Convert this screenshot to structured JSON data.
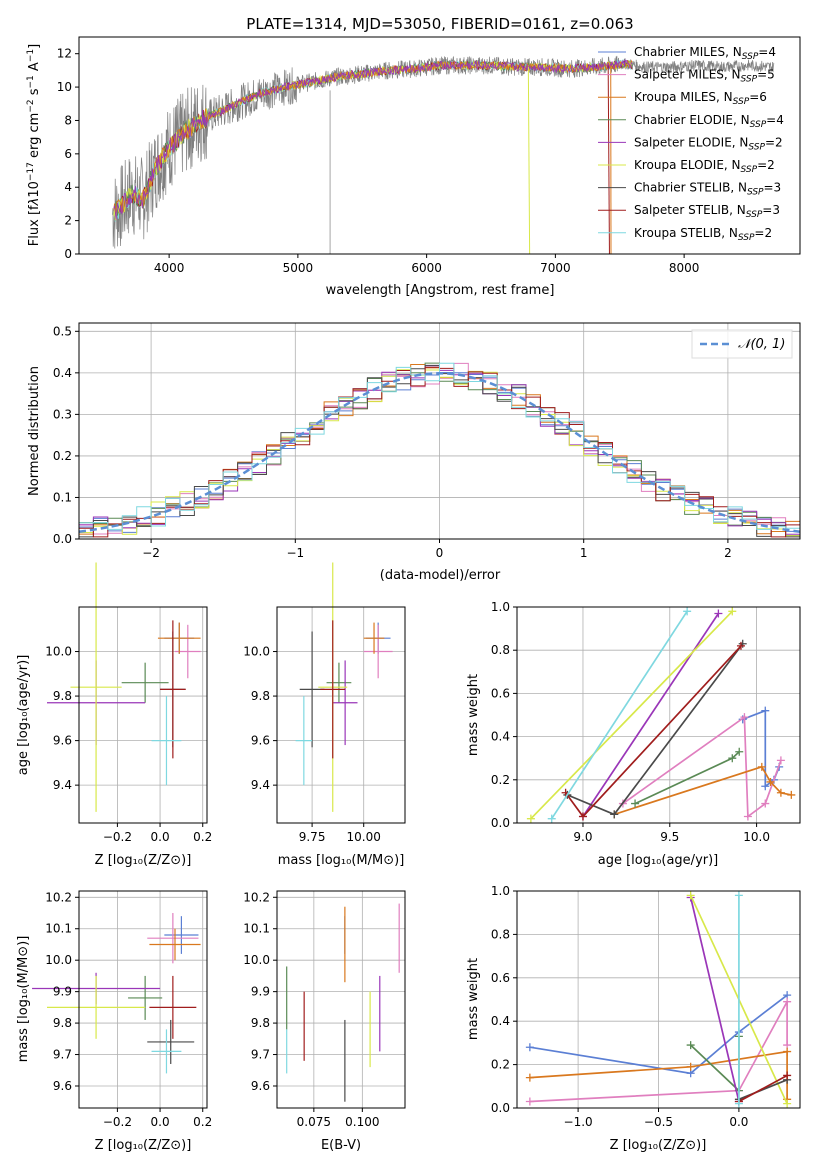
{
  "colors": {
    "chabrier_miles": "#5b7fd4",
    "salpeter_miles": "#e07fbf",
    "kroupa_miles": "#d9781e",
    "chabrier_elodie": "#5a8a55",
    "salpeter_elodie": "#9a36b8",
    "kroupa_elodie": "#d8e84a",
    "chabrier_stelib": "#4a4a4a",
    "salpeter_stelib": "#a01d1d",
    "kroupa_stelib": "#7fd8e0",
    "data_grey": "#808080",
    "normal_curve": "#5b8fd4"
  },
  "chart_data": [
    {
      "id": "spectrum",
      "type": "line",
      "title": "PLATE=1314, MJD=53050, FIBERID=0161, z=0.063",
      "xlabel": "wavelength [Angstrom, rest frame]",
      "ylabel": "Flux [fλ10⁻¹⁷ erg cm⁻² s⁻¹ A⁻¹]",
      "xlim": [
        3300,
        8900
      ],
      "ylim": [
        0,
        13
      ],
      "xticks": [
        "4000",
        "5000",
        "6000",
        "7000",
        "8000"
      ],
      "yticks": [
        "0",
        "2",
        "4",
        "6",
        "8",
        "10",
        "12"
      ],
      "legend_position": "right",
      "legend": [
        "Chabrier MILES, NSSP=4",
        "Salpeter MILES, NSSP=5",
        "Kroupa MILES, NSSP=6",
        "Chabrier ELODIE, NSSP=4",
        "Salpeter ELODIE, NSSP=2",
        "Kroupa ELODIE, NSSP=2",
        "Chabrier STELIB, NSSP=3",
        "Salpeter STELIB, NSSP=3",
        "Kroupa STELIB, NSSP=2"
      ],
      "continuum": {
        "x": [
          3560,
          3650,
          3700,
          3800,
          3900,
          4000,
          4100,
          4200,
          4300,
          4500,
          4700,
          4900,
          5100,
          5300,
          5500,
          5700,
          5900,
          6100,
          6300,
          6500,
          6700,
          6900,
          7100,
          7300,
          7450,
          7550,
          7700,
          7900,
          8100,
          8300,
          8500,
          8700
        ],
        "y": [
          2.4,
          3.0,
          3.6,
          3.3,
          5.2,
          6.4,
          7.1,
          7.8,
          8.2,
          8.9,
          9.6,
          10.0,
          10.3,
          10.6,
          10.8,
          11.0,
          11.1,
          11.3,
          11.3,
          11.3,
          11.2,
          11.2,
          11.1,
          11.2,
          11.3,
          11.4,
          11.2,
          11.2,
          11.3,
          11.2,
          11.3,
          11.2
        ]
      }
    },
    {
      "id": "residuals",
      "type": "histogram",
      "xlabel": "(data-model)/error",
      "ylabel": "Normed distribution",
      "xlim": [
        -2.5,
        2.5
      ],
      "ylim": [
        0,
        0.52
      ],
      "xticks": [
        "−2",
        "−1",
        "0",
        "1",
        "2"
      ],
      "yticks": [
        "0.0",
        "0.1",
        "0.2",
        "0.3",
        "0.4",
        "0.5"
      ],
      "legend": [
        "𝒩(0, 1)"
      ],
      "legend_position": "top-right",
      "grid": true
    },
    {
      "id": "age_vs_Z",
      "type": "errorbar",
      "xlabel": "Z [log₁₀(Z/Z⊙)]",
      "ylabel": "age  [log₁₀(age/yr)]",
      "xlim": [
        -0.38,
        0.22
      ],
      "ylim": [
        9.23,
        10.2
      ],
      "xticks": [
        "−0.2",
        "0.0",
        "0.2"
      ],
      "yticks": [
        "9.4",
        "9.6",
        "9.8",
        "10.0"
      ],
      "points": [
        {
          "series": "chabrier_miles",
          "x": 0.09,
          "xerr": 0.07,
          "y": 10.06,
          "yerr": 0.07
        },
        {
          "series": "salpeter_miles",
          "x": 0.13,
          "xerr": 0.06,
          "y": 10.0,
          "yerr": 0.12
        },
        {
          "series": "kroupa_miles",
          "x": 0.09,
          "xerr": 0.1,
          "y": 10.06,
          "yerr": 0.07
        },
        {
          "series": "chabrier_elodie",
          "x": -0.07,
          "xerr": 0.11,
          "y": 9.86,
          "yerr": 0.09
        },
        {
          "series": "salpeter_elodie",
          "x": -0.3,
          "xerr": 0.23,
          "y": 9.77,
          "yerr": 0.19
        },
        {
          "series": "kroupa_elodie",
          "x": -0.3,
          "xerr": 0.12,
          "y": 9.84,
          "yerr": 0.56
        },
        {
          "series": "chabrier_stelib",
          "x": 0.06,
          "xerr": 0.06,
          "y": 9.83,
          "yerr": 0.26
        },
        {
          "series": "salpeter_stelib",
          "x": 0.06,
          "xerr": 0.06,
          "y": 9.83,
          "yerr": 0.31
        },
        {
          "series": "kroupa_stelib",
          "x": 0.03,
          "xerr": 0.07,
          "y": 9.6,
          "yerr": 0.2
        }
      ]
    },
    {
      "id": "age_vs_mass",
      "type": "errorbar",
      "xlabel": "mass [log₁₀(M/M⊙)]",
      "xlim": [
        9.58,
        10.2
      ],
      "ylim": [
        9.23,
        10.2
      ],
      "xticks": [
        "9.75",
        "10.00"
      ],
      "yticks": [
        "9.4",
        "9.6",
        "9.8",
        "10.0"
      ],
      "points": [
        {
          "series": "chabrier_miles",
          "x": 10.07,
          "xerr": 0.06,
          "y": 10.06,
          "yerr": 0.07
        },
        {
          "series": "salpeter_miles",
          "x": 10.07,
          "xerr": 0.07,
          "y": 10.0,
          "yerr": 0.12
        },
        {
          "series": "kroupa_miles",
          "x": 10.05,
          "xerr": 0.05,
          "y": 10.06,
          "yerr": 0.07
        },
        {
          "series": "chabrier_elodie",
          "x": 9.88,
          "xerr": 0.06,
          "y": 9.86,
          "yerr": 0.09
        },
        {
          "series": "salpeter_elodie",
          "x": 9.91,
          "xerr": 0.06,
          "y": 9.77,
          "yerr": 0.19
        },
        {
          "series": "kroupa_elodie",
          "x": 9.85,
          "xerr": 0.07,
          "y": 9.84,
          "yerr": 0.56
        },
        {
          "series": "chabrier_stelib",
          "x": 9.75,
          "xerr": 0.06,
          "y": 9.83,
          "yerr": 0.26
        },
        {
          "series": "salpeter_stelib",
          "x": 9.85,
          "xerr": 0.06,
          "y": 9.83,
          "yerr": 0.31
        },
        {
          "series": "kroupa_stelib",
          "x": 9.71,
          "xerr": 0.04,
          "y": 9.6,
          "yerr": 0.2
        }
      ]
    },
    {
      "id": "weight_vs_age",
      "type": "line",
      "xlabel": "age  [log₁₀(age/yr)]",
      "ylabel": "mass weight",
      "xlim": [
        8.62,
        10.25
      ],
      "ylim": [
        0,
        1.0
      ],
      "xticks": [
        "9.0",
        "9.5",
        "10.0"
      ],
      "yticks": [
        "0.0",
        "0.2",
        "0.4",
        "0.6",
        "0.8",
        "1.0"
      ],
      "grid": true,
      "series": [
        {
          "series": "chabrier_miles",
          "x": [
            9.92,
            10.05,
            10.05,
            10.1,
            10.13
          ],
          "y": [
            0.48,
            0.52,
            0.17,
            0.2,
            0.26
          ]
        },
        {
          "series": "salpeter_miles",
          "x": [
            9.23,
            9.93,
            9.95,
            10.05,
            10.14
          ],
          "y": [
            0.09,
            0.49,
            0.03,
            0.09,
            0.29
          ]
        },
        {
          "series": "kroupa_miles",
          "x": [
            9.18,
            10.03,
            10.08,
            10.14,
            10.2
          ],
          "y": [
            0.04,
            0.26,
            0.19,
            0.14,
            0.13
          ]
        },
        {
          "series": "chabrier_elodie",
          "x": [
            9.3,
            9.86,
            9.9
          ],
          "y": [
            0.09,
            0.3,
            0.33
          ]
        },
        {
          "series": "salpeter_elodie",
          "x": [
            9.0,
            9.78
          ],
          "y": [
            0.03,
            0.97
          ]
        },
        {
          "series": "kroupa_elodie",
          "x": [
            8.7,
            9.86
          ],
          "y": [
            0.02,
            0.98
          ]
        },
        {
          "series": "chabrier_stelib",
          "x": [
            8.91,
            9.18,
            9.92
          ],
          "y": [
            0.13,
            0.04,
            0.83
          ]
        },
        {
          "series": "salpeter_stelib",
          "x": [
            8.9,
            9.0,
            9.91
          ],
          "y": [
            0.14,
            0.03,
            0.82
          ]
        },
        {
          "series": "kroupa_stelib",
          "x": [
            8.82,
            9.6
          ],
          "y": [
            0.02,
            0.98
          ]
        }
      ]
    },
    {
      "id": "mass_vs_Z",
      "type": "errorbar",
      "xlabel": "Z [log₁₀(Z/Z⊙)]",
      "ylabel": "mass [log₁₀(M/M⊙)]",
      "xlim": [
        -0.38,
        0.22
      ],
      "ylim": [
        9.53,
        10.22
      ],
      "xticks": [
        "−0.2",
        "0.0",
        "0.2"
      ],
      "yticks": [
        "9.6",
        "9.7",
        "9.8",
        "9.9",
        "10.0",
        "10.1",
        "10.2"
      ],
      "points": [
        {
          "series": "chabrier_miles",
          "x": 0.1,
          "xerr": 0.08,
          "y": 10.08,
          "yerr": 0.06
        },
        {
          "series": "salpeter_miles",
          "x": 0.06,
          "xerr": 0.12,
          "y": 10.07,
          "yerr": 0.08
        },
        {
          "series": "kroupa_miles",
          "x": 0.07,
          "xerr": 0.12,
          "y": 10.05,
          "yerr": 0.05
        },
        {
          "series": "chabrier_elodie",
          "x": -0.07,
          "xerr": 0.08,
          "y": 9.88,
          "yerr": 0.07
        },
        {
          "series": "salpeter_elodie",
          "x": -0.3,
          "xerr": 0.3,
          "y": 9.91,
          "yerr": 0.05
        },
        {
          "series": "kroupa_elodie",
          "x": -0.3,
          "xerr": 0.23,
          "y": 9.85,
          "yerr": 0.1
        },
        {
          "series": "chabrier_stelib",
          "x": 0.05,
          "xerr": 0.11,
          "y": 9.74,
          "yerr": 0.07
        },
        {
          "series": "salpeter_stelib",
          "x": 0.06,
          "xerr": 0.11,
          "y": 9.85,
          "yerr": 0.1
        },
        {
          "series": "kroupa_stelib",
          "x": 0.03,
          "xerr": 0.07,
          "y": 9.71,
          "yerr": 0.07
        }
      ]
    },
    {
      "id": "mass_vs_ebv",
      "type": "errorbar",
      "xlabel": "E(B-V)",
      "xlim": [
        0.056,
        0.122
      ],
      "ylim": [
        9.53,
        10.22
      ],
      "xticks": [
        "0.075",
        "0.100"
      ],
      "yticks": [
        "9.6",
        "9.7",
        "9.8",
        "9.9",
        "10.0",
        "10.1",
        "10.2"
      ],
      "points": [
        {
          "series": "chabrier_miles",
          "x": 0.091,
          "y": 10.08,
          "yerr": 0.06
        },
        {
          "series": "salpeter_miles",
          "x": 0.119,
          "y": 10.07,
          "yerr": 0.11
        },
        {
          "series": "kroupa_miles",
          "x": 0.091,
          "y": 10.05,
          "yerr": 0.12
        },
        {
          "series": "chabrier_elodie",
          "x": 0.061,
          "y": 9.88,
          "yerr": 0.1
        },
        {
          "series": "salpeter_elodie",
          "x": 0.109,
          "y": 9.83,
          "yerr": 0.12
        },
        {
          "series": "kroupa_elodie",
          "x": 0.104,
          "y": 9.78,
          "yerr": 0.12
        },
        {
          "series": "chabrier_stelib",
          "x": 0.091,
          "y": 9.68,
          "yerr": 0.13
        },
        {
          "series": "salpeter_stelib",
          "x": 0.07,
          "y": 9.79,
          "yerr": 0.11
        },
        {
          "series": "kroupa_stelib",
          "x": 0.061,
          "y": 9.71,
          "yerr": 0.07
        }
      ]
    },
    {
      "id": "weight_vs_Z",
      "type": "line",
      "xlabel": "Z [log₁₀(Z/Z⊙)]",
      "ylabel": "mass weight",
      "xlim": [
        -1.38,
        0.38
      ],
      "ylim": [
        0,
        1.0
      ],
      "xticks": [
        "−1.0",
        "−0.5",
        "0.0"
      ],
      "yticks": [
        "0.0",
        "0.2",
        "0.4",
        "0.6",
        "0.8",
        "1.0"
      ],
      "grid": true,
      "series": [
        {
          "series": "chabrier_miles",
          "x": [
            -1.3,
            -0.3,
            0.0,
            0.3
          ],
          "y": [
            0.28,
            0.16,
            0.35,
            0.52
          ]
        },
        {
          "series": "salpeter_miles",
          "x": [
            -1.3,
            0.0,
            0.3,
            0.3
          ],
          "y": [
            0.03,
            0.08,
            0.49,
            0.29
          ]
        },
        {
          "series": "kroupa_miles",
          "x": [
            -1.3,
            -0.3,
            0.3,
            0.3
          ],
          "y": [
            0.14,
            0.19,
            0.26,
            0.04
          ]
        },
        {
          "series": "chabrier_elodie",
          "x": [
            -0.3,
            0.0,
            0.0
          ],
          "y": [
            0.29,
            0.08,
            0.33
          ]
        },
        {
          "series": "salpeter_elodie",
          "x": [
            -0.3,
            0.0
          ],
          "y": [
            0.97,
            0.03
          ]
        },
        {
          "series": "kroupa_elodie",
          "x": [
            -0.3,
            0.3
          ],
          "y": [
            0.98,
            0.02
          ]
        },
        {
          "series": "chabrier_stelib",
          "x": [
            0.0,
            0.3
          ],
          "y": [
            0.04,
            0.13
          ]
        },
        {
          "series": "salpeter_stelib",
          "x": [
            0.0,
            0.3
          ],
          "y": [
            0.03,
            0.15
          ]
        },
        {
          "series": "kroupa_stelib",
          "x": [
            0.0,
            0.0
          ],
          "y": [
            0.98,
            0.02
          ]
        }
      ]
    }
  ]
}
